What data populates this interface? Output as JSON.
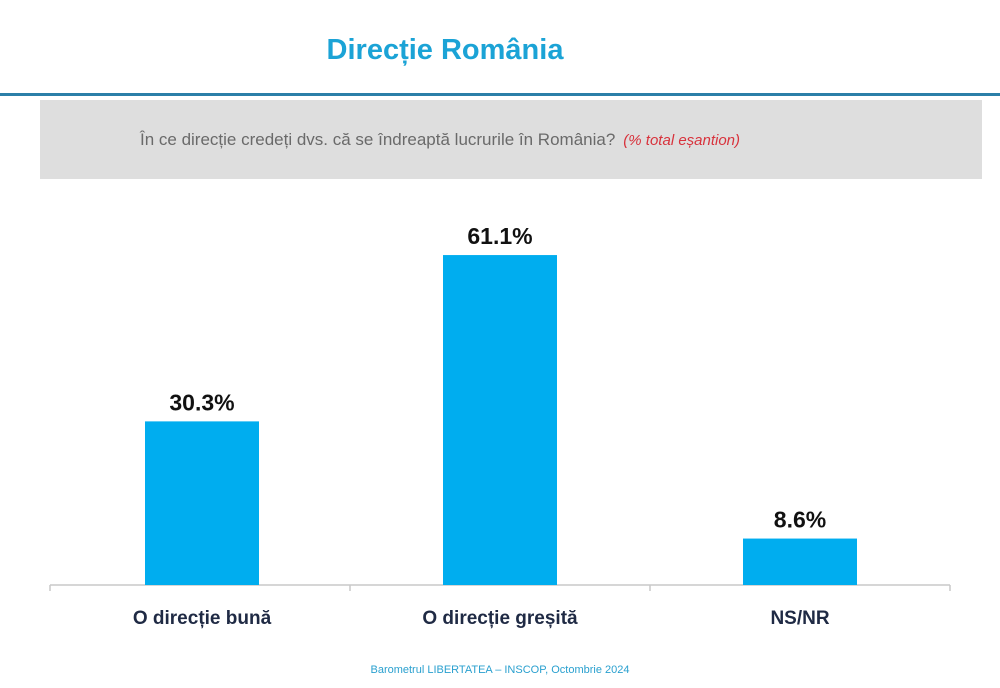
{
  "title": "Direcție România",
  "question": "În ce direcție credeți dvs. că se îndreaptă lucrurile în România?",
  "question_note": "(% total eșantion)",
  "source": "Barometrul LIBERTATEA – INSCOP, Octombrie 2024",
  "colors": {
    "bar": "#00adef",
    "title": "#1ba3d6",
    "note": "#d8323c"
  },
  "chart_data": {
    "type": "bar",
    "categories": [
      "O direcție bună",
      "O direcție greșită",
      "NS/NR"
    ],
    "values": [
      30.3,
      61.1,
      8.6
    ],
    "data_labels": [
      "30.3%",
      "61.1%",
      "8.6%"
    ],
    "title": "Direcție România",
    "xlabel": "",
    "ylabel": "",
    "ylim": [
      0,
      70
    ],
    "grid": false,
    "legend": "none"
  }
}
